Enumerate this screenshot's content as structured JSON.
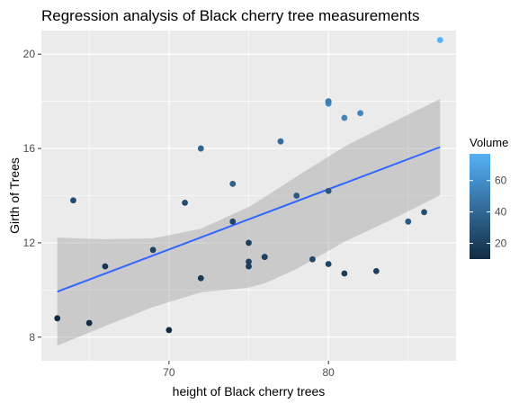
{
  "chart_data": {
    "type": "scatter",
    "title": "Regression analysis of Black cherry tree measurements",
    "xlabel": "height of Black cherry trees",
    "ylabel": "Girth of Trees",
    "xlim": [
      62,
      88
    ],
    "ylim": [
      7,
      21
    ],
    "x_ticks": [
      70,
      80
    ],
    "y_ticks": [
      8,
      12,
      16,
      20
    ],
    "grid": true,
    "legend": {
      "title": "Volume",
      "position": "right",
      "range": [
        10,
        77
      ],
      "ticks": [
        20,
        40,
        60
      ],
      "color_low": "#132B43",
      "color_high": "#56B1F7"
    },
    "points": [
      {
        "x": 70,
        "y": 8.3,
        "volume": 10.3
      },
      {
        "x": 65,
        "y": 8.6,
        "volume": 10.3
      },
      {
        "x": 63,
        "y": 8.8,
        "volume": 10.2
      },
      {
        "x": 72,
        "y": 10.5,
        "volume": 16.4
      },
      {
        "x": 81,
        "y": 10.7,
        "volume": 18.8
      },
      {
        "x": 83,
        "y": 10.8,
        "volume": 19.7
      },
      {
        "x": 66,
        "y": 11.0,
        "volume": 15.6
      },
      {
        "x": 75,
        "y": 11.0,
        "volume": 18.2
      },
      {
        "x": 80,
        "y": 11.1,
        "volume": 22.6
      },
      {
        "x": 75,
        "y": 11.2,
        "volume": 19.9
      },
      {
        "x": 79,
        "y": 11.3,
        "volume": 24.2
      },
      {
        "x": 76,
        "y": 11.4,
        "volume": 21.0
      },
      {
        "x": 76,
        "y": 11.4,
        "volume": 21.4
      },
      {
        "x": 69,
        "y": 11.7,
        "volume": 21.3
      },
      {
        "x": 75,
        "y": 12.0,
        "volume": 19.1
      },
      {
        "x": 74,
        "y": 12.9,
        "volume": 22.2
      },
      {
        "x": 85,
        "y": 12.9,
        "volume": 33.8
      },
      {
        "x": 86,
        "y": 13.3,
        "volume": 27.4
      },
      {
        "x": 71,
        "y": 13.7,
        "volume": 25.7
      },
      {
        "x": 64,
        "y": 13.8,
        "volume": 24.9
      },
      {
        "x": 78,
        "y": 14.0,
        "volume": 34.5
      },
      {
        "x": 80,
        "y": 14.2,
        "volume": 31.7
      },
      {
        "x": 74,
        "y": 14.5,
        "volume": 36.3
      },
      {
        "x": 72,
        "y": 16.0,
        "volume": 38.3
      },
      {
        "x": 77,
        "y": 16.3,
        "volume": 42.6
      },
      {
        "x": 81,
        "y": 17.3,
        "volume": 55.4
      },
      {
        "x": 82,
        "y": 17.5,
        "volume": 55.7
      },
      {
        "x": 80,
        "y": 17.9,
        "volume": 58.3
      },
      {
        "x": 80,
        "y": 18.0,
        "volume": 51.5
      },
      {
        "x": 80,
        "y": 18.0,
        "volume": 51.0
      },
      {
        "x": 87,
        "y": 20.6,
        "volume": 77.0
      }
    ],
    "regression": {
      "method": "lm",
      "x": [
        63,
        87
      ],
      "y": [
        9.93,
        16.06
      ]
    },
    "confidence_band": {
      "x": [
        63,
        66,
        69,
        72,
        75,
        76,
        78,
        81,
        84,
        87
      ],
      "upper": [
        12.22,
        12.15,
        12.19,
        12.6,
        13.52,
        13.94,
        14.81,
        16.08,
        17.1,
        18.1
      ],
      "lower": [
        7.64,
        8.47,
        9.28,
        9.9,
        10.1,
        10.28,
        10.89,
        12.04,
        13.0,
        14.02
      ]
    }
  }
}
